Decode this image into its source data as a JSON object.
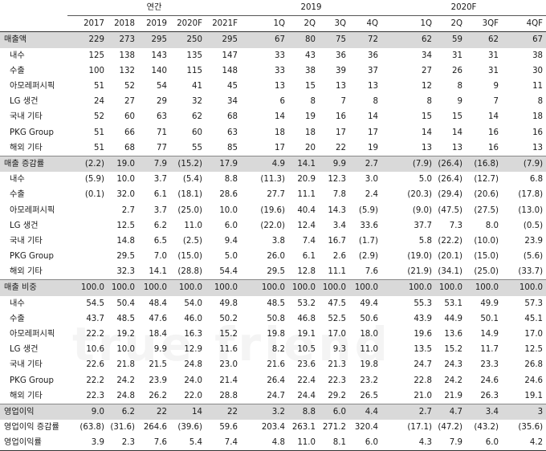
{
  "header": {
    "groups": [
      "연간",
      "2019",
      "2020F"
    ],
    "columns": [
      "2017",
      "2018",
      "2019",
      "2020F",
      "2021F",
      "1Q",
      "2Q",
      "3Q",
      "4Q",
      "1Q",
      "2Q",
      "3QF",
      "4QF"
    ]
  },
  "rows": [
    {
      "label": "매출액",
      "level": 0,
      "shade": true,
      "sep": false,
      "values": [
        "229",
        "273",
        "295",
        "250",
        "295",
        "67",
        "80",
        "75",
        "72",
        "62",
        "59",
        "62",
        "67"
      ]
    },
    {
      "label": "내수",
      "level": 1,
      "shade": false,
      "sep": false,
      "values": [
        "125",
        "138",
        "143",
        "135",
        "147",
        "33",
        "43",
        "36",
        "36",
        "34",
        "31",
        "31",
        "38"
      ]
    },
    {
      "label": "수출",
      "level": 1,
      "shade": false,
      "sep": false,
      "values": [
        "100",
        "132",
        "140",
        "115",
        "148",
        "33",
        "38",
        "39",
        "37",
        "27",
        "26",
        "31",
        "30"
      ]
    },
    {
      "label": "아모레퍼시픽",
      "level": 2,
      "shade": false,
      "sep": false,
      "values": [
        "51",
        "52",
        "54",
        "41",
        "45",
        "13",
        "15",
        "13",
        "13",
        "12",
        "8",
        "9",
        "11"
      ]
    },
    {
      "label": "LG 생건",
      "level": 2,
      "shade": false,
      "sep": false,
      "values": [
        "24",
        "27",
        "29",
        "32",
        "34",
        "6",
        "8",
        "7",
        "8",
        "8",
        "9",
        "7",
        "8"
      ]
    },
    {
      "label": "국내 기타",
      "level": 2,
      "shade": false,
      "sep": false,
      "values": [
        "52",
        "60",
        "63",
        "62",
        "68",
        "14",
        "19",
        "16",
        "14",
        "15",
        "15",
        "14",
        "18"
      ]
    },
    {
      "label": "PKG Group",
      "level": 2,
      "shade": false,
      "sep": false,
      "values": [
        "51",
        "66",
        "71",
        "60",
        "63",
        "18",
        "18",
        "17",
        "17",
        "14",
        "14",
        "16",
        "16"
      ]
    },
    {
      "label": "해외 기타",
      "level": 2,
      "shade": false,
      "sep": false,
      "values": [
        "51",
        "68",
        "77",
        "55",
        "85",
        "17",
        "20",
        "22",
        "19",
        "13",
        "13",
        "16",
        "13"
      ]
    },
    {
      "label": "매출 증감률",
      "level": 0,
      "shade": true,
      "sep": true,
      "values": [
        "(2.2)",
        "19.0",
        "7.9",
        "(15.2)",
        "17.9",
        "4.9",
        "14.1",
        "9.9",
        "2.7",
        "(7.9)",
        "(26.4)",
        "(16.8)",
        "(7.9)"
      ]
    },
    {
      "label": "내수",
      "level": 1,
      "shade": false,
      "sep": false,
      "values": [
        "(5.9)",
        "10.0",
        "3.7",
        "(5.4)",
        "8.8",
        "(11.3)",
        "20.9",
        "12.3",
        "3.0",
        "5.0",
        "(26.4)",
        "(12.7)",
        "6.8"
      ]
    },
    {
      "label": "수출",
      "level": 1,
      "shade": false,
      "sep": false,
      "values": [
        "(0.1)",
        "32.0",
        "6.1",
        "(18.1)",
        "28.6",
        "27.7",
        "11.1",
        "7.8",
        "2.4",
        "(20.3)",
        "(29.4)",
        "(20.6)",
        "(17.8)"
      ]
    },
    {
      "label": "아모레퍼시픽",
      "level": 2,
      "shade": false,
      "sep": false,
      "values": [
        "",
        "2.7",
        "3.7",
        "(25.0)",
        "10.0",
        "(19.6)",
        "40.4",
        "14.3",
        "(5.9)",
        "(9.0)",
        "(47.5)",
        "(27.5)",
        "(13.0)"
      ]
    },
    {
      "label": "LG 생건",
      "level": 2,
      "shade": false,
      "sep": false,
      "values": [
        "",
        "12.5",
        "6.2",
        "11.0",
        "6.0",
        "(22.0)",
        "12.4",
        "3.4",
        "33.6",
        "37.7",
        "7.3",
        "8.0",
        "(0.5)"
      ]
    },
    {
      "label": "국내 기타",
      "level": 2,
      "shade": false,
      "sep": false,
      "values": [
        "",
        "14.8",
        "6.5",
        "(2.5)",
        "9.4",
        "3.8",
        "7.4",
        "16.7",
        "(1.7)",
        "5.8",
        "(22.2)",
        "(10.0)",
        "23.9"
      ]
    },
    {
      "label": "PKG Group",
      "level": 2,
      "shade": false,
      "sep": false,
      "values": [
        "",
        "29.5",
        "7.0",
        "(15.0)",
        "5.0",
        "26.0",
        "6.1",
        "2.6",
        "(2.9)",
        "(19.0)",
        "(20.1)",
        "(15.0)",
        "(5.6)"
      ]
    },
    {
      "label": "해외 기타",
      "level": 2,
      "shade": false,
      "sep": false,
      "values": [
        "",
        "32.3",
        "14.1",
        "(28.8)",
        "54.4",
        "29.5",
        "12.8",
        "11.1",
        "7.6",
        "(21.9)",
        "(34.1)",
        "(25.0)",
        "(33.7)"
      ]
    },
    {
      "label": "매출 비중",
      "level": 0,
      "shade": true,
      "sep": true,
      "values": [
        "100.0",
        "100.0",
        "100.0",
        "100.0",
        "100.0",
        "100.0",
        "100.0",
        "100.0",
        "100.0",
        "100.0",
        "100.0",
        "100.0",
        "100.0"
      ]
    },
    {
      "label": "내수",
      "level": 1,
      "shade": false,
      "sep": false,
      "values": [
        "54.5",
        "50.4",
        "48.4",
        "54.0",
        "49.8",
        "48.5",
        "53.2",
        "47.5",
        "49.4",
        "55.3",
        "53.1",
        "49.9",
        "57.3"
      ]
    },
    {
      "label": "수출",
      "level": 1,
      "shade": false,
      "sep": false,
      "values": [
        "43.7",
        "48.5",
        "47.6",
        "46.0",
        "50.2",
        "50.8",
        "46.8",
        "52.5",
        "50.6",
        "43.9",
        "44.9",
        "50.1",
        "45.1"
      ]
    },
    {
      "label": "아모레퍼시픽",
      "level": 2,
      "shade": false,
      "sep": false,
      "values": [
        "22.2",
        "19.2",
        "18.4",
        "16.3",
        "15.2",
        "19.8",
        "19.1",
        "17.0",
        "18.0",
        "19.6",
        "13.6",
        "14.9",
        "17.0"
      ]
    },
    {
      "label": "LG 생건",
      "level": 2,
      "shade": false,
      "sep": false,
      "values": [
        "10.6",
        "10.0",
        "9.9",
        "12.9",
        "11.6",
        "8.2",
        "10.5",
        "9.3",
        "11.0",
        "13.5",
        "15.2",
        "11.7",
        "12.5"
      ]
    },
    {
      "label": "국내 기타",
      "level": 2,
      "shade": false,
      "sep": false,
      "values": [
        "22.6",
        "21.8",
        "21.5",
        "24.8",
        "23.0",
        "21.6",
        "23.6",
        "21.3",
        "19.8",
        "24.7",
        "24.3",
        "23.3",
        "26.8"
      ]
    },
    {
      "label": "PKG Group",
      "level": 2,
      "shade": false,
      "sep": false,
      "values": [
        "22.2",
        "24.2",
        "23.9",
        "24.0",
        "21.4",
        "26.4",
        "22.4",
        "22.3",
        "23.2",
        "22.8",
        "24.2",
        "24.6",
        "24.6"
      ]
    },
    {
      "label": "해외 기타",
      "level": 2,
      "shade": false,
      "sep": false,
      "values": [
        "22.3",
        "24.8",
        "26.2",
        "22.0",
        "28.8",
        "24.7",
        "24.4",
        "29.2",
        "26.5",
        "21.0",
        "21.9",
        "26.3",
        "19.1"
      ]
    },
    {
      "label": "영업이익",
      "level": 0,
      "shade": true,
      "sep": true,
      "values": [
        "9.0",
        "6.2",
        "22",
        "14",
        "22",
        "3.2",
        "8.8",
        "6.0",
        "4.4",
        "2.7",
        "4.7",
        "3.4",
        "3"
      ]
    },
    {
      "label": "영업이익 증감률",
      "level": 0,
      "shade": false,
      "sep": false,
      "values": [
        "(63.8)",
        "(31.6)",
        "264.6",
        "(39.6)",
        "59.6",
        "203.4",
        "263.1",
        "271.2",
        "320.4",
        "(17.1)",
        "(47.2)",
        "(43.2)",
        "(35.6)"
      ]
    },
    {
      "label": "영업이익률",
      "level": 0,
      "shade": false,
      "sep": false,
      "values": [
        "3.9",
        "2.3",
        "7.6",
        "5.4",
        "7.4",
        "4.8",
        "11.0",
        "8.1",
        "6.0",
        "4.3",
        "7.9",
        "6.0",
        "4.2"
      ]
    }
  ],
  "watermark": "true friend"
}
